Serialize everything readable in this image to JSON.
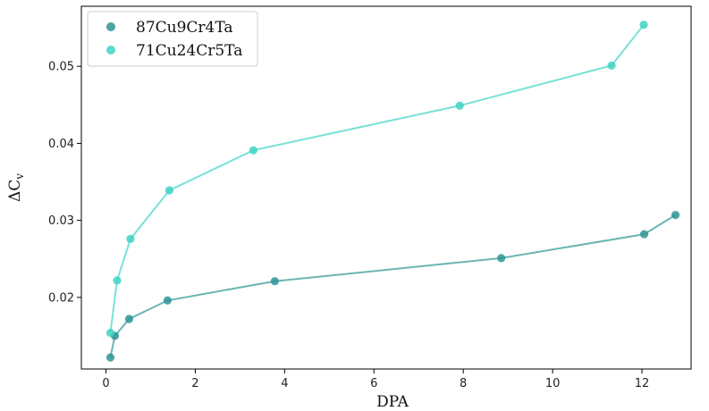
{
  "chart_data": {
    "type": "line",
    "xlabel": "DPA",
    "ylabel_main": "ΔC",
    "ylabel_sub": "v",
    "xlim": [
      -0.55,
      13.1
    ],
    "ylim": [
      0.0107,
      0.0578
    ],
    "xticks": [
      0,
      2,
      4,
      6,
      8,
      10,
      12
    ],
    "yticks": [
      0.02,
      0.03,
      0.04,
      0.05
    ],
    "xtick_labels": [
      "0",
      "2",
      "4",
      "6",
      "8",
      "10",
      "12"
    ],
    "ytick_labels": [
      "0.02",
      "0.03",
      "0.04",
      "0.05"
    ],
    "grid": false,
    "legend_position": "top-left",
    "series": [
      {
        "name": "87Cu9Cr4Ta",
        "color": "#2e9494",
        "x": [
          0.1,
          0.2,
          0.52,
          1.38,
          3.78,
          8.85,
          12.05,
          12.75
        ],
        "y": [
          0.0122,
          0.015,
          0.0172,
          0.0196,
          0.0221,
          0.0251,
          0.0282,
          0.0307
        ]
      },
      {
        "name": "71Cu24Cr5Ta",
        "color": "#3fd4c4",
        "x": [
          0.1,
          0.25,
          0.55,
          1.42,
          3.3,
          7.92,
          11.32,
          12.04
        ],
        "y": [
          0.0154,
          0.0222,
          0.0276,
          0.0339,
          0.0391,
          0.0449,
          0.0501,
          0.0554
        ]
      }
    ]
  }
}
